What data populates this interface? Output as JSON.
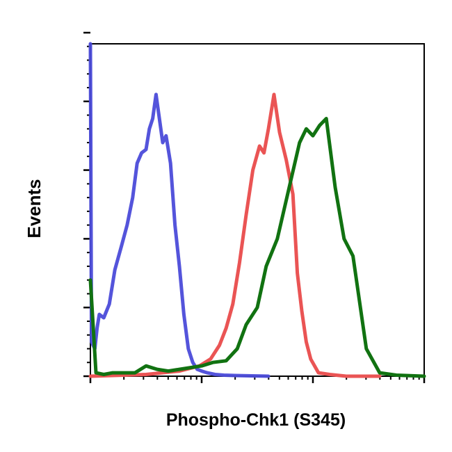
{
  "chart_data": {
    "type": "line",
    "title": "",
    "xlabel": "Phospho-Chk1 (S345)",
    "ylabel": "Events",
    "x_scale": "log",
    "xlim": [
      0,
      3
    ],
    "ylim": [
      0,
      100
    ],
    "grid": false,
    "legend": "none",
    "y_major_ticks": [
      0,
      20,
      40,
      60,
      80,
      100
    ],
    "x_major_ticks": [
      0,
      1,
      2,
      3
    ],
    "series": [
      {
        "color": "#4b4bd9",
        "x": [
          0.0,
          0.01,
          0.04,
          0.06,
          0.08,
          0.12,
          0.17,
          0.22,
          0.28,
          0.33,
          0.38,
          0.42,
          0.46,
          0.5,
          0.53,
          0.56,
          0.59,
          0.62,
          0.65,
          0.68,
          0.72,
          0.76,
          0.8,
          0.84,
          0.88,
          0.92,
          0.96,
          1.0,
          1.05,
          1.12,
          1.2,
          1.3,
          1.45,
          1.6
        ],
        "y": [
          100,
          10,
          8,
          14,
          18,
          17,
          21,
          31,
          38,
          44,
          52,
          62,
          65,
          66,
          72,
          75,
          82,
          75,
          68,
          70,
          62,
          44,
          32,
          18,
          8,
          4,
          2,
          1.5,
          1,
          0.5,
          0.3,
          0.2,
          0.1,
          0
        ]
      },
      {
        "color": "#ea5454",
        "x": [
          0.0,
          0.5,
          0.8,
          0.98,
          1.08,
          1.16,
          1.22,
          1.28,
          1.34,
          1.4,
          1.46,
          1.52,
          1.56,
          1.6,
          1.65,
          1.7,
          1.76,
          1.82,
          1.86,
          1.9,
          1.94,
          1.98,
          2.05,
          2.15,
          2.3,
          2.6
        ],
        "y": [
          0,
          0.5,
          1.5,
          3,
          5,
          9,
          14,
          21,
          33,
          47,
          60,
          67,
          65,
          72,
          82,
          71,
          63,
          53,
          30,
          19,
          10,
          5,
          1,
          0.5,
          0,
          0
        ]
      },
      {
        "color": "#117211",
        "x": [
          0.0,
          0.05,
          0.12,
          0.2,
          0.28,
          0.4,
          0.5,
          0.6,
          0.7,
          0.8,
          0.9,
          1.0,
          1.1,
          1.22,
          1.32,
          1.4,
          1.5,
          1.58,
          1.68,
          1.78,
          1.88,
          1.94,
          2.0,
          2.06,
          2.12,
          2.2,
          2.28,
          2.36,
          2.48,
          2.6,
          2.75,
          3.0
        ],
        "y": [
          28,
          1,
          0.5,
          1,
          1,
          1,
          3,
          2,
          1.5,
          2,
          2.5,
          3,
          4,
          4.5,
          8,
          15,
          20,
          32,
          40,
          54,
          68,
          72,
          70,
          73,
          75,
          55,
          40,
          35,
          8,
          1,
          0.3,
          0
        ]
      }
    ]
  }
}
